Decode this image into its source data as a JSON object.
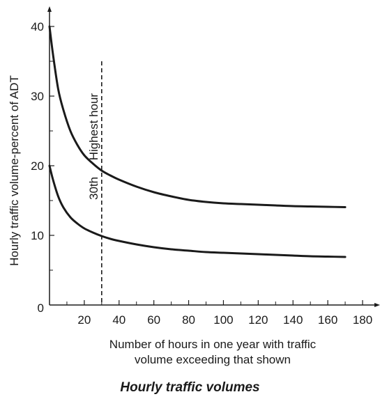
{
  "chart_data": {
    "type": "line",
    "title": "Hourly traffic volumes",
    "xlabel": [
      "Number of hours in one year with traffic",
      "volume exceeding that shown"
    ],
    "ylabel": "Hourly traffic volume-percent of ADT",
    "xlim": [
      0,
      180
    ],
    "ylim": [
      0,
      40
    ],
    "x_ticks": [
      20,
      40,
      60,
      80,
      100,
      120,
      140,
      160,
      180
    ],
    "y_ticks": [
      0,
      10,
      20,
      30,
      40
    ],
    "grid": false,
    "legend": "none",
    "series": [
      {
        "x": [
          0,
          2,
          5,
          8,
          12,
          16,
          20,
          25,
          30,
          35,
          40,
          50,
          60,
          70,
          80,
          90,
          100,
          110,
          120,
          130,
          140,
          150,
          160,
          170
        ],
        "values": [
          40,
          36,
          31,
          28,
          25,
          23,
          21.5,
          20.3,
          19.3,
          18.6,
          18,
          17,
          16.2,
          15.6,
          15.1,
          14.8,
          14.6,
          14.5,
          14.4,
          14.3,
          14.2,
          14.15,
          14.1,
          14.05
        ]
      },
      {
        "x": [
          0,
          2,
          5,
          8,
          12,
          16,
          20,
          25,
          30,
          35,
          40,
          50,
          60,
          70,
          80,
          90,
          100,
          110,
          120,
          130,
          140,
          150,
          160,
          170
        ],
        "values": [
          20,
          18,
          15.6,
          14,
          12.6,
          11.7,
          11,
          10.4,
          9.9,
          9.5,
          9.2,
          8.7,
          8.3,
          8,
          7.8,
          7.6,
          7.5,
          7.4,
          7.3,
          7.2,
          7.1,
          7,
          6.95,
          6.9
        ]
      }
    ],
    "reference_line": {
      "x": 30,
      "y_top": 35,
      "style": "dashed",
      "label": "30th     Highest hour"
    }
  }
}
